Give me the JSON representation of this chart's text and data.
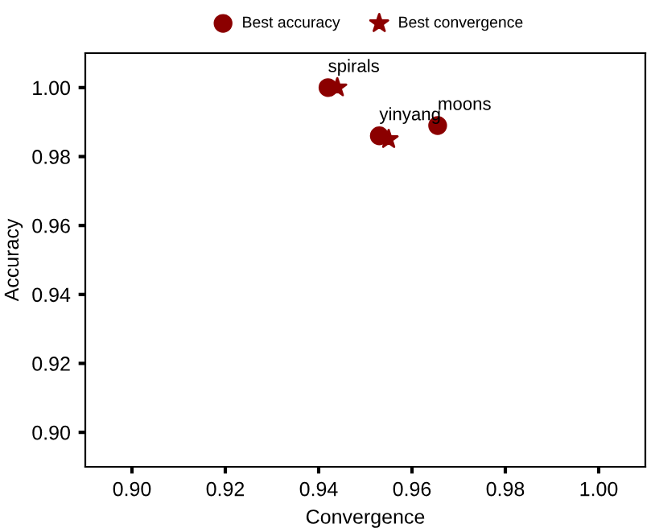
{
  "chart_data": {
    "type": "scatter",
    "xlabel": "Convergence",
    "ylabel": "Accuracy",
    "series": [
      {
        "name": "Best accuracy",
        "color": "#8b0000",
        "marker": "circle",
        "x": [
          0.942,
          0.953,
          0.9655
        ],
        "values": [
          1.0,
          0.986,
          0.989
        ]
      },
      {
        "name": "Best convergence",
        "color": "#8b0000",
        "marker": "star",
        "x": [
          0.944,
          0.955
        ],
        "values": [
          1.0,
          0.985
        ]
      }
    ],
    "annotations": [
      {
        "text": "spirals",
        "x": 0.942,
        "y": 1.0
      },
      {
        "text": "yinyang",
        "x": 0.953,
        "y": 0.986
      },
      {
        "text": "moons",
        "x": 0.9655,
        "y": 0.989
      }
    ],
    "xlim": [
      0.89,
      1.01
    ],
    "ylim": [
      0.89,
      1.01
    ],
    "xticks": [
      {
        "value": 0.9,
        "label": "0.90"
      },
      {
        "value": 0.92,
        "label": "0.92"
      },
      {
        "value": 0.94,
        "label": "0.94"
      },
      {
        "value": 0.96,
        "label": "0.96"
      },
      {
        "value": 0.98,
        "label": "0.98"
      },
      {
        "value": 1.0,
        "label": "1.00"
      }
    ],
    "yticks": [
      {
        "value": 0.9,
        "label": "0.90"
      },
      {
        "value": 0.92,
        "label": "0.92"
      },
      {
        "value": 0.94,
        "label": "0.94"
      },
      {
        "value": 0.96,
        "label": "0.96"
      },
      {
        "value": 0.98,
        "label": "0.98"
      },
      {
        "value": 1.0,
        "label": "1.00"
      }
    ],
    "grid": false,
    "legend": "top"
  }
}
